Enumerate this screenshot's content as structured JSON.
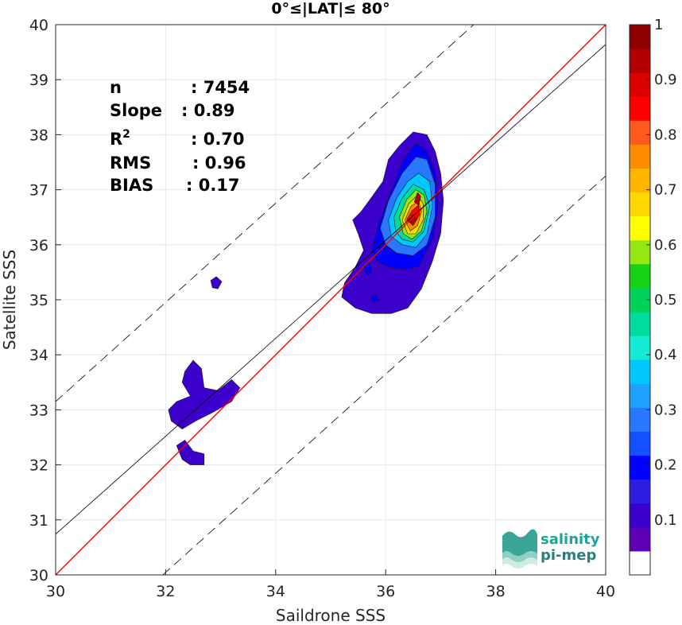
{
  "chart_data": {
    "type": "heatmap",
    "title": "0°≤|LAT|≤ 80°",
    "xlabel": "Saildrone SSS",
    "ylabel": "Satellite SSS",
    "xlim": [
      30,
      40
    ],
    "ylim": [
      30,
      40
    ],
    "xticks": [
      "30",
      "32",
      "34",
      "36",
      "38",
      "40"
    ],
    "yticks": [
      "30",
      "31",
      "32",
      "33",
      "34",
      "35",
      "36",
      "37",
      "38",
      "39",
      "40"
    ],
    "grid": true,
    "stats": [
      {
        "label": "n",
        "value": ": 7454"
      },
      {
        "label": "Slope",
        "value": ": 0.89"
      },
      {
        "label": "R",
        "sup": "2",
        "value": ": 0.70"
      },
      {
        "label": "RMS",
        "value": ": 0.96"
      },
      {
        "label": "BIAS",
        "value": ": 0.17"
      }
    ],
    "lines": [
      {
        "name": "one-to-one",
        "color": "#ff0000",
        "style": "solid",
        "x": [
          30,
          40
        ],
        "y": [
          30,
          40
        ]
      },
      {
        "name": "regression",
        "color": "#000000",
        "style": "solid",
        "x": [
          30,
          40
        ],
        "y": [
          30.74,
          39.64
        ]
      },
      {
        "name": "upper-bound",
        "color": "#000000",
        "style": "dashed",
        "x": [
          30,
          37.6
        ],
        "y": [
          33.15,
          40
        ]
      },
      {
        "name": "lower-bound",
        "color": "#000000",
        "style": "dashed",
        "x": [
          31.95,
          40
        ],
        "y": [
          30,
          37.25
        ]
      }
    ],
    "density_contours": [
      {
        "level": 0.05,
        "polygons": [
          [
            [
              35.25,
              35.3
            ],
            [
              35.45,
              35.6
            ],
            [
              35.6,
              35.9
            ],
            [
              35.5,
              36.2
            ],
            [
              35.4,
              36.45
            ],
            [
              35.55,
              36.6
            ],
            [
              35.7,
              36.8
            ],
            [
              35.95,
              37.15
            ],
            [
              36.05,
              37.55
            ],
            [
              36.25,
              37.8
            ],
            [
              36.5,
              38.05
            ],
            [
              36.75,
              38.0
            ],
            [
              36.9,
              37.7
            ],
            [
              37.0,
              37.3
            ],
            [
              37.05,
              36.8
            ],
            [
              37.0,
              36.2
            ],
            [
              36.85,
              35.7
            ],
            [
              36.65,
              35.2
            ],
            [
              36.4,
              34.85
            ],
            [
              36.1,
              34.75
            ],
            [
              35.75,
              34.75
            ],
            [
              35.45,
              34.85
            ],
            [
              35.2,
              35.05
            ]
          ],
          [
            [
              32.35,
              33.7
            ],
            [
              32.5,
              33.9
            ],
            [
              32.65,
              33.75
            ],
            [
              32.7,
              33.4
            ],
            [
              32.95,
              33.35
            ],
            [
              33.2,
              33.55
            ],
            [
              33.35,
              33.4
            ],
            [
              33.2,
              33.15
            ],
            [
              32.85,
              32.95
            ],
            [
              32.55,
              32.8
            ],
            [
              32.3,
              32.65
            ],
            [
              32.1,
              32.8
            ],
            [
              32.05,
              33.0
            ],
            [
              32.2,
              33.15
            ],
            [
              32.45,
              33.25
            ],
            [
              32.3,
              33.5
            ]
          ],
          [
            [
              32.2,
              32.35
            ],
            [
              32.35,
              32.45
            ],
            [
              32.5,
              32.25
            ],
            [
              32.7,
              32.2
            ],
            [
              32.7,
              32.0
            ],
            [
              32.45,
              32.0
            ],
            [
              32.3,
              32.1
            ]
          ],
          [
            [
              32.82,
              35.35
            ],
            [
              32.92,
              35.42
            ],
            [
              33.02,
              35.33
            ],
            [
              32.95,
              35.2
            ],
            [
              32.85,
              35.22
            ]
          ]
        ]
      },
      {
        "level": 0.15,
        "polygons": [
          [
            [
              35.75,
              35.9
            ],
            [
              35.85,
              36.3
            ],
            [
              36.05,
              36.85
            ],
            [
              36.3,
              37.5
            ],
            [
              36.55,
              37.85
            ],
            [
              36.75,
              37.7
            ],
            [
              36.9,
              37.3
            ],
            [
              36.95,
              36.7
            ],
            [
              36.85,
              36.1
            ],
            [
              36.6,
              35.6
            ],
            [
              36.3,
              35.55
            ],
            [
              36.05,
              35.6
            ],
            [
              35.85,
              35.7
            ]
          ],
          [
            [
              35.72,
              35.05
            ],
            [
              35.82,
              35.1
            ],
            [
              35.88,
              35.0
            ],
            [
              35.78,
              34.95
            ]
          ],
          [
            [
              35.6,
              35.6
            ],
            [
              35.7,
              35.7
            ],
            [
              35.75,
              35.5
            ],
            [
              35.65,
              35.45
            ]
          ]
        ]
      },
      {
        "level": 0.25,
        "polygons": [
          [
            [
              35.9,
              36.3
            ],
            [
              36.05,
              36.8
            ],
            [
              36.3,
              37.3
            ],
            [
              36.55,
              37.6
            ],
            [
              36.75,
              37.55
            ],
            [
              36.9,
              37.1
            ],
            [
              36.9,
              36.5
            ],
            [
              36.75,
              36.0
            ],
            [
              36.5,
              35.8
            ],
            [
              36.2,
              35.85
            ],
            [
              36.0,
              36.0
            ]
          ]
        ]
      },
      {
        "level": 0.35,
        "polygons": [
          [
            [
              36.05,
              36.45
            ],
            [
              36.2,
              36.85
            ],
            [
              36.4,
              37.15
            ],
            [
              36.6,
              37.3
            ],
            [
              36.8,
              37.15
            ],
            [
              36.85,
              36.7
            ],
            [
              36.75,
              36.2
            ],
            [
              36.55,
              35.95
            ],
            [
              36.3,
              36.0
            ],
            [
              36.1,
              36.15
            ]
          ]
        ]
      },
      {
        "level": 0.45,
        "polygons": [
          [
            [
              36.15,
              36.5
            ],
            [
              36.3,
              36.85
            ],
            [
              36.5,
              37.1
            ],
            [
              36.7,
              37.0
            ],
            [
              36.8,
              36.7
            ],
            [
              36.7,
              36.25
            ],
            [
              36.5,
              36.05
            ],
            [
              36.3,
              36.1
            ],
            [
              36.18,
              36.25
            ]
          ]
        ]
      },
      {
        "level": 0.55,
        "polygons": [
          [
            [
              36.25,
              36.5
            ],
            [
              36.38,
              36.82
            ],
            [
              36.55,
              37.0
            ],
            [
              36.7,
              36.9
            ],
            [
              36.75,
              36.6
            ],
            [
              36.65,
              36.25
            ],
            [
              36.48,
              36.1
            ],
            [
              36.32,
              36.2
            ]
          ]
        ]
      },
      {
        "level": 0.65,
        "polygons": [
          [
            [
              36.3,
              36.45
            ],
            [
              36.42,
              36.75
            ],
            [
              36.58,
              36.9
            ],
            [
              36.68,
              36.75
            ],
            [
              36.68,
              36.45
            ],
            [
              36.55,
              36.2
            ],
            [
              36.4,
              36.2
            ]
          ]
        ]
      },
      {
        "level": 0.75,
        "polygons": [
          [
            [
              36.35,
              36.45
            ],
            [
              36.46,
              36.7
            ],
            [
              36.6,
              36.8
            ],
            [
              36.65,
              36.6
            ],
            [
              36.58,
              36.35
            ],
            [
              36.45,
              36.25
            ]
          ]
        ]
      },
      {
        "level": 0.85,
        "polygons": [
          [
            [
              36.38,
              36.45
            ],
            [
              36.48,
              36.62
            ],
            [
              36.6,
              36.72
            ],
            [
              36.62,
              36.55
            ],
            [
              36.5,
              36.35
            ]
          ]
        ]
      },
      {
        "level": 0.92,
        "polygons": [
          [
            [
              36.42,
              36.45
            ],
            [
              36.5,
              36.55
            ],
            [
              36.56,
              36.45
            ],
            [
              36.48,
              36.38
            ]
          ],
          [
            [
              36.52,
              36.78
            ],
            [
              36.58,
              36.95
            ],
            [
              36.64,
              36.88
            ],
            [
              36.6,
              36.72
            ]
          ]
        ]
      }
    ],
    "colorbar": {
      "ticks": [
        "0.1",
        "0.2",
        "0.3",
        "0.4",
        "0.5",
        "0.6",
        "0.7",
        "0.8",
        "0.9",
        "1"
      ],
      "range": [
        0,
        1
      ],
      "first_band_color": "#ffffff",
      "colors": [
        "#ffffff",
        "#5b00b4",
        "#3b00cc",
        "#2c1ee0",
        "#0000ff",
        "#1450ff",
        "#2878ff",
        "#1ea0ff",
        "#00c8ff",
        "#14ebd7",
        "#00dc9c",
        "#00d25a",
        "#14d214",
        "#96e614",
        "#ffff00",
        "#ffd700",
        "#ffb400",
        "#ff8c00",
        "#ff5a1e",
        "#ff0000",
        "#dc0000",
        "#b40000",
        "#8c0000"
      ]
    }
  },
  "logo": {
    "line1": "salinity",
    "line2": "pi-mep"
  }
}
